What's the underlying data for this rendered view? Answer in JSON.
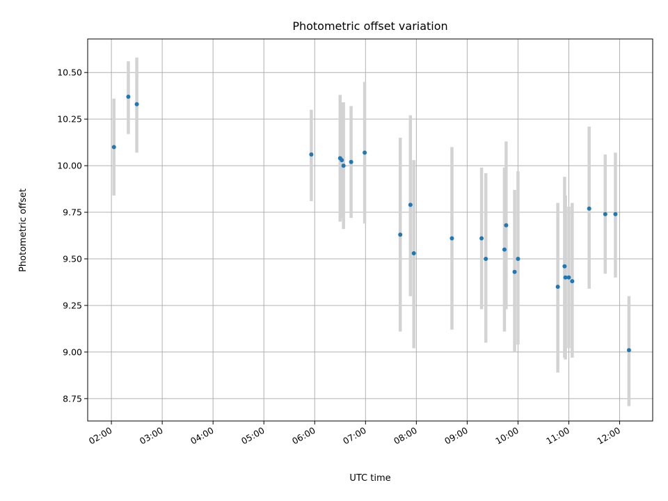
{
  "chart_data": {
    "type": "scatter",
    "title": "Photometric offset variation",
    "xlabel": "UTC time",
    "ylabel": "Photometric offset",
    "x_unit": "hh:mm UTC",
    "xlim": [
      "01:32",
      "12:39"
    ],
    "ylim": [
      8.63,
      10.68
    ],
    "grid": true,
    "x_ticks": [
      "02:00",
      "03:00",
      "04:00",
      "05:00",
      "06:00",
      "07:00",
      "08:00",
      "09:00",
      "10:00",
      "11:00",
      "12:00"
    ],
    "y_ticks": [
      "8.75",
      "9.00",
      "9.25",
      "9.50",
      "9.75",
      "10.00",
      "10.25",
      "10.50"
    ],
    "marker_color": "#1f77b4",
    "errorbar_color": "#d3d3d3",
    "points": [
      {
        "x": "02:03",
        "y": 10.1,
        "err_low": 9.84,
        "err_high": 10.36
      },
      {
        "x": "02:20",
        "y": 10.37,
        "err_low": 10.17,
        "err_high": 10.56
      },
      {
        "x": "02:30",
        "y": 10.33,
        "err_low": 10.07,
        "err_high": 10.58
      },
      {
        "x": "05:56",
        "y": 10.06,
        "err_low": 9.81,
        "err_high": 10.3
      },
      {
        "x": "06:30",
        "y": 10.04,
        "err_low": 9.7,
        "err_high": 10.38
      },
      {
        "x": "06:32",
        "y": 10.03,
        "err_low": 9.72,
        "err_high": 10.34
      },
      {
        "x": "06:34",
        "y": 10.0,
        "err_low": 9.66,
        "err_high": 10.34
      },
      {
        "x": "06:43",
        "y": 10.02,
        "err_low": 9.72,
        "err_high": 10.32
      },
      {
        "x": "06:59",
        "y": 10.07,
        "err_low": 9.69,
        "err_high": 10.45
      },
      {
        "x": "07:41",
        "y": 9.63,
        "err_low": 9.11,
        "err_high": 10.15
      },
      {
        "x": "07:53",
        "y": 9.79,
        "err_low": 9.3,
        "err_high": 10.27
      },
      {
        "x": "07:57",
        "y": 9.53,
        "err_low": 9.02,
        "err_high": 10.03
      },
      {
        "x": "08:42",
        "y": 9.61,
        "err_low": 9.12,
        "err_high": 10.1
      },
      {
        "x": "09:17",
        "y": 9.61,
        "err_low": 9.23,
        "err_high": 9.99
      },
      {
        "x": "09:22",
        "y": 9.5,
        "err_low": 9.05,
        "err_high": 9.96
      },
      {
        "x": "09:44",
        "y": 9.55,
        "err_low": 9.11,
        "err_high": 9.99
      },
      {
        "x": "09:46",
        "y": 9.68,
        "err_low": 9.23,
        "err_high": 10.13
      },
      {
        "x": "09:56",
        "y": 9.43,
        "err_low": 9.0,
        "err_high": 9.87
      },
      {
        "x": "10:00",
        "y": 9.5,
        "err_low": 9.04,
        "err_high": 9.97
      },
      {
        "x": "10:47",
        "y": 9.35,
        "err_low": 8.89,
        "err_high": 9.8
      },
      {
        "x": "10:55",
        "y": 9.46,
        "err_low": 8.97,
        "err_high": 9.94
      },
      {
        "x": "10:56",
        "y": 9.4,
        "err_low": 8.96,
        "err_high": 9.84
      },
      {
        "x": "11:00",
        "y": 9.4,
        "err_low": 9.02,
        "err_high": 9.78
      },
      {
        "x": "11:04",
        "y": 9.38,
        "err_low": 8.97,
        "err_high": 9.8
      },
      {
        "x": "11:24",
        "y": 9.77,
        "err_low": 9.34,
        "err_high": 10.21
      },
      {
        "x": "11:43",
        "y": 9.74,
        "err_low": 9.42,
        "err_high": 10.06
      },
      {
        "x": "11:55",
        "y": 9.74,
        "err_low": 9.4,
        "err_high": 10.07
      },
      {
        "x": "12:11",
        "y": 9.01,
        "err_low": 8.71,
        "err_high": 9.3
      }
    ]
  }
}
